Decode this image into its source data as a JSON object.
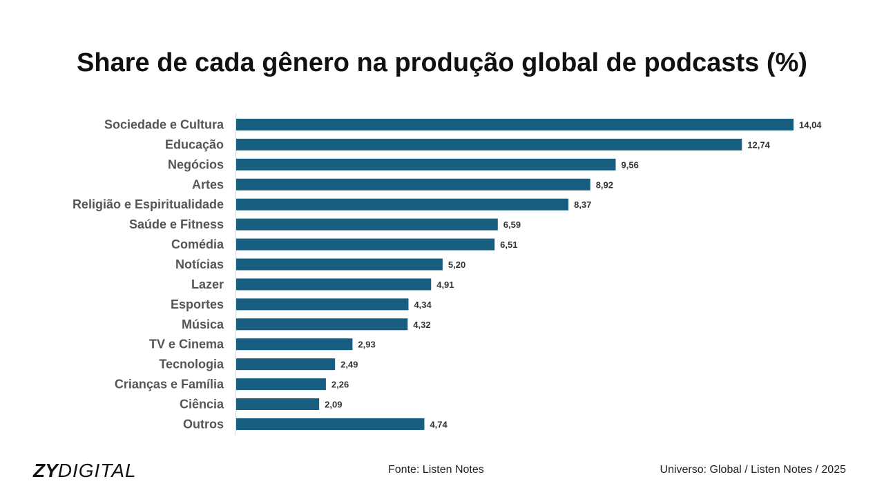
{
  "chart_data": {
    "type": "bar",
    "orientation": "horizontal",
    "title": "Share de cada gênero na produção global de podcasts (%)",
    "categories": [
      "Sociedade e Cultura",
      "Educação",
      "Negócios",
      "Artes",
      "Religião e Espiritualidade",
      "Saúde e Fitness",
      "Comédia",
      "Notícias",
      "Lazer",
      "Esportes",
      "Música",
      "TV e Cinema",
      "Tecnologia",
      "Crianças e Família",
      "Ciência",
      "Outros"
    ],
    "values": [
      14.04,
      12.74,
      9.56,
      8.92,
      8.37,
      6.59,
      6.51,
      5.2,
      4.91,
      4.34,
      4.32,
      2.93,
      2.49,
      2.26,
      2.09,
      4.74
    ],
    "value_labels": [
      "14,04",
      "12,74",
      "9,56",
      "8,92",
      "8,37",
      "6,59",
      "6,51",
      "5,20",
      "4,91",
      "4,34",
      "4,32",
      "2,93",
      "2,49",
      "2,26",
      "2,09",
      "4,74"
    ],
    "xlim": [
      0,
      14.04
    ],
    "grid": false,
    "legend": "none",
    "bar_color": "#175E81"
  },
  "footer": {
    "logo_bold": "ZY",
    "logo_light": "DIGITAL",
    "source": "Fonte: Listen Notes",
    "universe": "Universo: Global / Listen Notes / 2025"
  }
}
